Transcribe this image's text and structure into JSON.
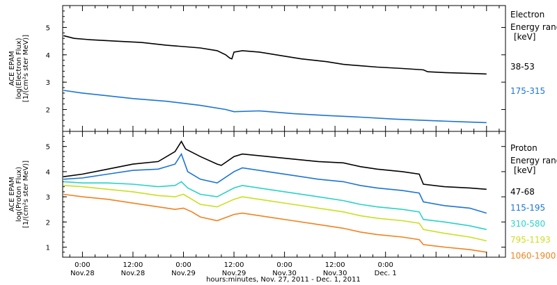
{
  "chart_data": [
    {
      "type": "line",
      "ylabel": [
        "ACE EPAM",
        "log(Electron Flux)",
        "[1/(cm²s ster MeV)]"
      ],
      "ylim": [
        1.2,
        5.8
      ],
      "yticks": [
        2,
        3,
        4,
        5
      ],
      "legend_title": [
        "Electron",
        "Energy range",
        "[keV]"
      ],
      "legend_placement": "right",
      "series": [
        {
          "name": "38-53",
          "color": "#000000",
          "x": [
            -4.5,
            -2,
            2,
            8,
            14,
            20,
            24,
            28,
            32,
            34,
            35,
            35.5,
            36,
            38,
            42,
            48,
            52,
            58,
            62,
            66,
            70,
            76,
            81,
            82,
            86,
            92,
            96
          ],
          "y": [
            4.7,
            4.6,
            4.55,
            4.5,
            4.45,
            4.35,
            4.3,
            4.25,
            4.15,
            4.0,
            3.88,
            3.85,
            4.1,
            4.15,
            4.1,
            3.95,
            3.85,
            3.75,
            3.65,
            3.6,
            3.55,
            3.5,
            3.45,
            3.38,
            3.35,
            3.32,
            3.3
          ]
        },
        {
          "name": "175-315",
          "color": "#1c74d4",
          "x": [
            -4.5,
            0,
            6,
            12,
            20,
            28,
            34,
            36,
            42,
            50,
            58,
            66,
            74,
            82,
            90,
            96
          ],
          "y": [
            2.7,
            2.6,
            2.5,
            2.4,
            2.3,
            2.15,
            2.0,
            1.92,
            1.95,
            1.85,
            1.78,
            1.72,
            1.65,
            1.6,
            1.55,
            1.52
          ]
        }
      ]
    },
    {
      "type": "line",
      "ylabel": [
        "ACE EPAM",
        "log(Proton Flux)",
        "[1/(cm²s ster MeV)]"
      ],
      "ylim": [
        0.6,
        5.6
      ],
      "yticks": [
        1,
        2,
        3,
        4,
        5
      ],
      "legend_title": [
        "Proton",
        "Energy range",
        "[keV]"
      ],
      "legend_placement": "right",
      "series": [
        {
          "name": "47-68",
          "color": "#000000",
          "x": [
            -4.5,
            0,
            6,
            12,
            18,
            22,
            23.5,
            24.5,
            28,
            32,
            33,
            36,
            38,
            44,
            50,
            56,
            62,
            66,
            70,
            76,
            80,
            81,
            86,
            92,
            96
          ],
          "y": [
            3.8,
            3.9,
            4.1,
            4.3,
            4.4,
            4.8,
            5.2,
            4.9,
            4.6,
            4.3,
            4.25,
            4.6,
            4.7,
            4.6,
            4.5,
            4.4,
            4.35,
            4.2,
            4.1,
            4.0,
            3.9,
            3.5,
            3.4,
            3.35,
            3.3
          ]
        },
        {
          "name": "115-195",
          "color": "#1c74d4",
          "x": [
            -4.5,
            0,
            6,
            12,
            18,
            22,
            23.5,
            25,
            28,
            32,
            36,
            38,
            44,
            50,
            56,
            62,
            66,
            70,
            76,
            80,
            81,
            86,
            92,
            96
          ],
          "y": [
            3.7,
            3.75,
            3.9,
            4.05,
            4.1,
            4.3,
            4.7,
            4.0,
            3.7,
            3.55,
            4.0,
            4.15,
            4.0,
            3.85,
            3.7,
            3.6,
            3.45,
            3.35,
            3.25,
            3.15,
            2.8,
            2.65,
            2.55,
            2.35
          ]
        },
        {
          "name": "310-580",
          "color": "#28d2c8",
          "x": [
            -4.5,
            0,
            6,
            12,
            18,
            22,
            23.5,
            25,
            28,
            32,
            36,
            38,
            44,
            50,
            56,
            62,
            66,
            70,
            76,
            80,
            81,
            86,
            92,
            96
          ],
          "y": [
            3.6,
            3.55,
            3.55,
            3.5,
            3.4,
            3.45,
            3.6,
            3.35,
            3.1,
            3.0,
            3.35,
            3.45,
            3.3,
            3.15,
            3.0,
            2.85,
            2.7,
            2.6,
            2.5,
            2.4,
            2.1,
            2.0,
            1.85,
            1.7
          ]
        },
        {
          "name": "795-1193",
          "color": "#c8e01e",
          "x": [
            -4.5,
            0,
            6,
            12,
            18,
            22,
            24,
            26,
            28,
            32,
            36,
            38,
            44,
            50,
            56,
            62,
            66,
            70,
            76,
            80,
            81,
            86,
            92,
            96
          ],
          "y": [
            3.45,
            3.4,
            3.3,
            3.2,
            3.05,
            3.0,
            3.1,
            2.9,
            2.7,
            2.6,
            2.9,
            3.0,
            2.85,
            2.7,
            2.55,
            2.4,
            2.25,
            2.15,
            2.05,
            1.95,
            1.7,
            1.55,
            1.4,
            1.25
          ]
        },
        {
          "name": "1060-1900",
          "color": "#f0821e",
          "x": [
            -4.5,
            0,
            6,
            12,
            18,
            22,
            24,
            26,
            28,
            32,
            36,
            38,
            44,
            50,
            56,
            62,
            66,
            70,
            76,
            80,
            81,
            86,
            92,
            96
          ],
          "y": [
            3.1,
            3.0,
            2.9,
            2.75,
            2.6,
            2.5,
            2.55,
            2.4,
            2.2,
            2.05,
            2.3,
            2.35,
            2.2,
            2.05,
            1.9,
            1.75,
            1.6,
            1.5,
            1.4,
            1.3,
            1.1,
            1.0,
            0.9,
            0.8
          ]
        }
      ]
    }
  ],
  "x_axis": {
    "range_hours": [
      -4.7,
      100.5
    ],
    "major_ticks": [
      {
        "hour": 0,
        "time": "0:00",
        "date": "Nov.28"
      },
      {
        "hour": 12,
        "time": "12:00",
        "date": "Nov.28"
      },
      {
        "hour": 24,
        "time": "0:00",
        "date": "Nov.29"
      },
      {
        "hour": 36,
        "time": "12:00",
        "date": "Nov.29"
      },
      {
        "hour": 48,
        "time": "0:00",
        "date": "Nov.30"
      },
      {
        "hour": 60,
        "time": "12:00",
        "date": "Nov.30"
      },
      {
        "hour": 72,
        "time": "0:00",
        "date": "Dec. 1"
      }
    ],
    "label": "hours:minutes, Nov. 27, 2011 - Dec. 1, 2011"
  }
}
